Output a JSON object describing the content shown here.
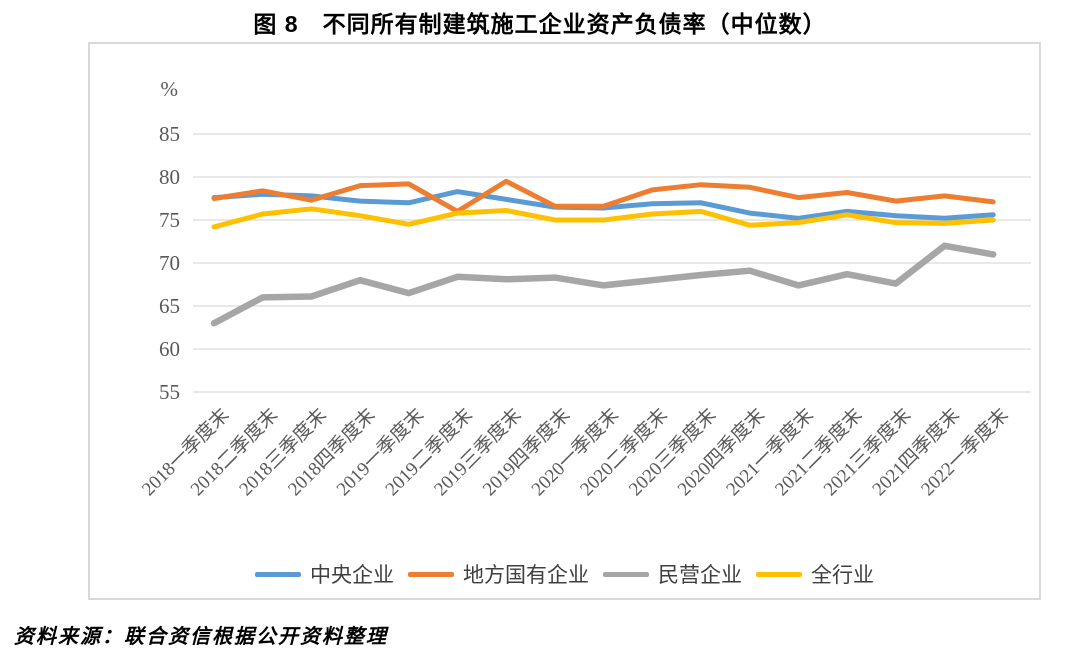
{
  "title": "图 8　不同所有制建筑施工企业资产负债率（中位数）",
  "source_note": "资料来源：联合资信根据公开资料整理",
  "chart_data": {
    "type": "line",
    "title": "图 8　不同所有制建筑施工企业资产负债率（中位数）",
    "unit_label": "%",
    "ylabel": "%",
    "xlabel": "",
    "ylim": [
      55,
      87.5
    ],
    "y_ticks": [
      85,
      80,
      75,
      70,
      65,
      60,
      55
    ],
    "grid": true,
    "legend_position": "bottom",
    "categories": [
      "2018一季度末",
      "2018二季度末",
      "2018三季度末",
      "2018四季度末",
      "2019一季度末",
      "2019二季度末",
      "2019三季度末",
      "2019四季度末",
      "2020一季度末",
      "2020二季度末",
      "2020三季度末",
      "2020四季度末",
      "2021一季度末",
      "2021二季度末",
      "2021三季度末",
      "2021四季度末",
      "2022一季度末"
    ],
    "series": [
      {
        "key": "central-enterprises",
        "name": "中央企业",
        "color": "#5B9BD5",
        "values": [
          77.6,
          78.0,
          77.8,
          77.2,
          77.0,
          78.3,
          77.4,
          76.5,
          76.4,
          76.9,
          77.0,
          75.8,
          75.2,
          76.0,
          75.5,
          75.2,
          75.6
        ]
      },
      {
        "key": "local-state-owned-enterprises",
        "name": "地方国有企业",
        "color": "#ED7D31",
        "values": [
          77.5,
          78.4,
          77.3,
          79.0,
          79.2,
          76.0,
          79.5,
          76.6,
          76.6,
          78.5,
          79.1,
          78.8,
          77.6,
          78.2,
          77.2,
          77.8,
          77.1
        ]
      },
      {
        "key": "private-enterprises",
        "name": "民营企业",
        "color": "#A6A6A6",
        "values": [
          63.0,
          66.0,
          66.1,
          68.0,
          66.5,
          68.4,
          68.1,
          68.3,
          67.4,
          68.0,
          68.6,
          69.1,
          67.4,
          68.7,
          67.6,
          72.0,
          71.0
        ]
      },
      {
        "key": "whole-industry",
        "name": "全行业",
        "color": "#FFC000",
        "values": [
          74.2,
          75.7,
          76.3,
          75.5,
          74.5,
          75.8,
          76.1,
          75.0,
          75.0,
          75.7,
          76.0,
          74.4,
          74.7,
          75.6,
          74.7,
          74.6,
          75.0
        ]
      }
    ]
  }
}
